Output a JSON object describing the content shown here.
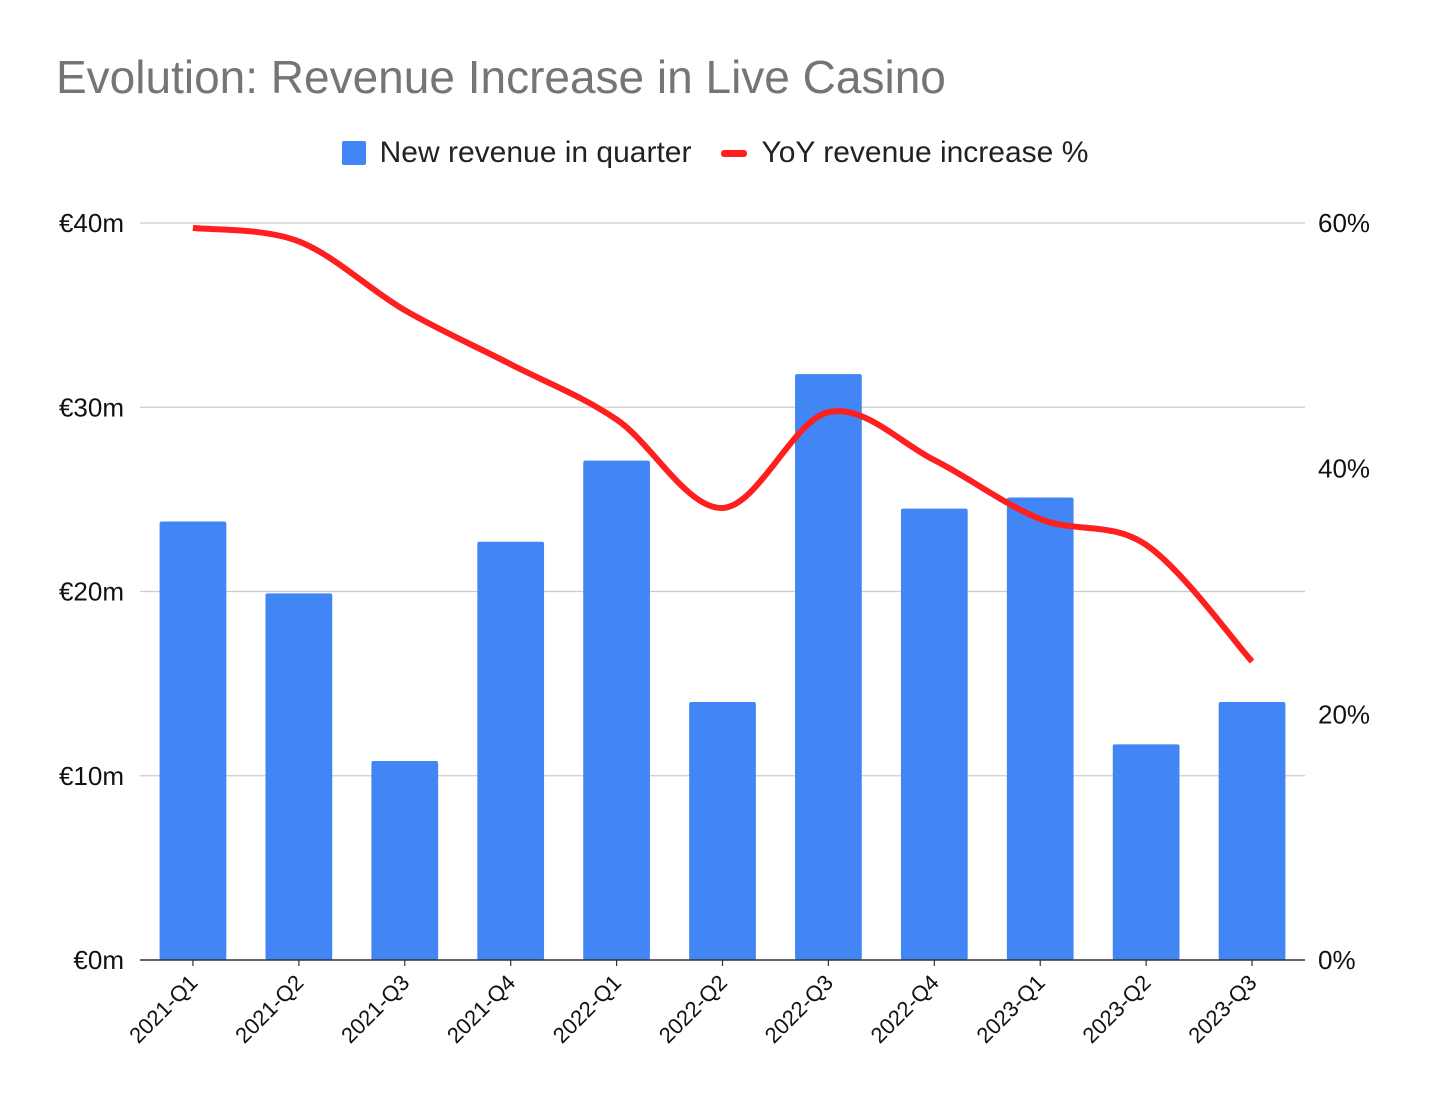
{
  "chart_data": {
    "type": "bar",
    "title": "Evolution: Revenue Increase in Live Casino",
    "categories": [
      "2021-Q1",
      "2021-Q2",
      "2021-Q3",
      "2021-Q4",
      "2022-Q1",
      "2022-Q2",
      "2022-Q3",
      "2022-Q4",
      "2023-Q1",
      "2023-Q2",
      "2023-Q3"
    ],
    "series": [
      {
        "name": "New revenue in quarter",
        "kind": "bar",
        "axis": "left",
        "color": "#4285f4",
        "values": [
          23.8,
          19.9,
          10.8,
          22.7,
          27.1,
          14.0,
          31.8,
          24.5,
          25.1,
          11.7,
          14.0
        ]
      },
      {
        "name": "YoY revenue increase %",
        "kind": "line",
        "axis": "right",
        "color": "#ff1f1f",
        "values": [
          59.6,
          58.5,
          52.9,
          48.5,
          44.0,
          36.8,
          44.6,
          40.7,
          35.9,
          33.8,
          24.3
        ]
      }
    ],
    "y_left": {
      "ylim": [
        0,
        40
      ],
      "ticks": [
        0,
        10,
        20,
        30,
        40
      ],
      "tick_labels": [
        "€0m",
        "€10m",
        "€20m",
        "€30m",
        "€40m"
      ]
    },
    "y_right": {
      "ylim": [
        0,
        60
      ],
      "ticks": [
        0,
        20,
        40,
        60
      ],
      "tick_labels": [
        "0%",
        "20%",
        "40%",
        "60%"
      ]
    },
    "grid": true,
    "legend_position": "top-center",
    "xlabel": "",
    "ylabel": ""
  }
}
